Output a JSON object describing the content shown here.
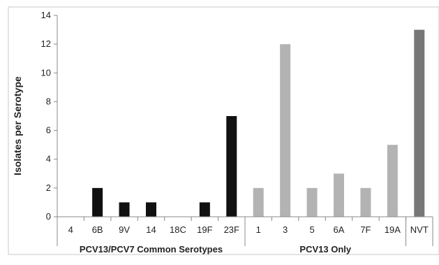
{
  "chart_data": {
    "type": "bar",
    "ylabel": "Isolates per Serotype",
    "ylim": [
      0,
      14
    ],
    "yticks": [
      0,
      2,
      4,
      6,
      8,
      10,
      12,
      14
    ],
    "grid": false,
    "legend": "none",
    "categories": [
      "4",
      "6B",
      "9V",
      "14",
      "18C",
      "19F",
      "23F",
      "1",
      "3",
      "5",
      "6A",
      "7F",
      "19A",
      "NVT"
    ],
    "values": [
      0,
      2,
      1,
      1,
      0,
      1,
      7,
      2,
      12,
      2,
      3,
      2,
      5,
      13
    ],
    "groups": [
      {
        "label": "PCV13/PCV7 Common Serotypes",
        "start": 0,
        "end": 6,
        "color": "#111111"
      },
      {
        "label": "PCV13 Only",
        "start": 7,
        "end": 12,
        "color": "#b3b3b3"
      },
      {
        "label": "",
        "start": 13,
        "end": 13,
        "color": "#777777"
      }
    ]
  }
}
